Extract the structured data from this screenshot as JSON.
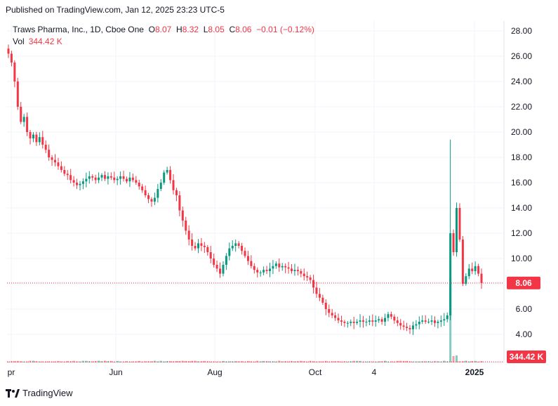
{
  "header": {
    "published": "Published on TradingView.com, Jan 12, 2025 23:23 UTC-5"
  },
  "legend": {
    "title": "Traws Pharma, Inc., 1D, Cboe One",
    "o_label": "O",
    "o": "8.07",
    "h_label": "H",
    "h": "8.32",
    "l_label": "L",
    "l": "8.05",
    "c_label": "C",
    "c": "8.06",
    "change": "−0.01 (−0.12%)"
  },
  "volume": {
    "label": "Vol",
    "value": "344.42 K"
  },
  "footer": {
    "brand": "TradingView"
  },
  "colors": {
    "up": "#089981",
    "down": "#f23645",
    "grid": "#f0f3fa",
    "text": "#131722"
  },
  "chart_data": {
    "type": "candlestick",
    "title": "Traws Pharma, Inc., 1D, Cboe One",
    "ylim": [
      3.0,
      29.0
    ],
    "y_ticks": [
      "4.00",
      "6.00",
      "8.00",
      "10.00",
      "12.00",
      "14.00",
      "16.00",
      "18.00",
      "20.00",
      "22.00",
      "24.00",
      "26.00",
      "28.00"
    ],
    "x_ticks": [
      "pr",
      "Jun",
      "Aug",
      "Oct",
      "4",
      "2025"
    ],
    "last_price_label": "8.06",
    "last_volume_label": "344.42 K",
    "last_price": 8.06,
    "close_path": [
      [
        0,
        26.2
      ],
      [
        1,
        25.5
      ],
      [
        2,
        24.0
      ],
      [
        3,
        22.0
      ],
      [
        4,
        20.8
      ],
      [
        5,
        21.2
      ],
      [
        6,
        20.0
      ],
      [
        7,
        19.5
      ],
      [
        8,
        19.8
      ],
      [
        9,
        19.2
      ],
      [
        10,
        19.6
      ],
      [
        11,
        19.0
      ],
      [
        12,
        18.6
      ],
      [
        13,
        18.0
      ],
      [
        14,
        17.8
      ],
      [
        15,
        17.6
      ],
      [
        16,
        17.3
      ],
      [
        17,
        17.0
      ],
      [
        18,
        16.7
      ],
      [
        19,
        16.6
      ],
      [
        20,
        16.2
      ],
      [
        21,
        16.0
      ],
      [
        22,
        15.8
      ],
      [
        23,
        15.9
      ],
      [
        24,
        16.1
      ],
      [
        25,
        16.3
      ],
      [
        26,
        16.5
      ],
      [
        27,
        16.4
      ],
      [
        28,
        16.2
      ],
      [
        29,
        16.4
      ],
      [
        30,
        16.6
      ],
      [
        31,
        16.3
      ],
      [
        32,
        16.5
      ],
      [
        33,
        16.4
      ],
      [
        34,
        16.2
      ],
      [
        35,
        16.3
      ],
      [
        36,
        16.5
      ],
      [
        37,
        16.3
      ],
      [
        38,
        16.1
      ],
      [
        39,
        16.4
      ],
      [
        40,
        16.2
      ],
      [
        41,
        16.0
      ],
      [
        42,
        15.7
      ],
      [
        43,
        15.4
      ],
      [
        44,
        15.0
      ],
      [
        45,
        14.7
      ],
      [
        46,
        14.5
      ],
      [
        47,
        14.8
      ],
      [
        48,
        15.5
      ],
      [
        49,
        16.0
      ],
      [
        50,
        16.8
      ],
      [
        51,
        17.0
      ],
      [
        52,
        16.2
      ],
      [
        53,
        15.4
      ],
      [
        54,
        15.0
      ],
      [
        55,
        13.8
      ],
      [
        56,
        13.0
      ],
      [
        57,
        12.2
      ],
      [
        58,
        11.5
      ],
      [
        59,
        11.0
      ],
      [
        60,
        10.8
      ],
      [
        61,
        11.2
      ],
      [
        62,
        11.0
      ],
      [
        63,
        10.9
      ],
      [
        64,
        10.5
      ],
      [
        65,
        10.0
      ],
      [
        66,
        9.5
      ],
      [
        67,
        9.2
      ],
      [
        68,
        8.8
      ],
      [
        69,
        9.5
      ],
      [
        70,
        10.2
      ],
      [
        71,
        10.8
      ],
      [
        72,
        11.0
      ],
      [
        73,
        11.2
      ],
      [
        74,
        11.0
      ],
      [
        75,
        10.6
      ],
      [
        76,
        10.2
      ],
      [
        77,
        9.8
      ],
      [
        78,
        9.4
      ],
      [
        79,
        9.1
      ],
      [
        80,
        8.9
      ],
      [
        81,
        8.9
      ],
      [
        82,
        9.1
      ],
      [
        83,
        9.0
      ],
      [
        84,
        9.2
      ],
      [
        85,
        9.4
      ],
      [
        86,
        9.6
      ],
      [
        87,
        9.3
      ],
      [
        88,
        9.4
      ],
      [
        89,
        9.3
      ],
      [
        90,
        9.2
      ],
      [
        91,
        9.0
      ],
      [
        92,
        9.1
      ],
      [
        93,
        9.0
      ],
      [
        94,
        8.8
      ],
      [
        95,
        8.6
      ],
      [
        96,
        8.5
      ],
      [
        97,
        8.3
      ],
      [
        98,
        7.7
      ],
      [
        99,
        7.2
      ],
      [
        100,
        6.9
      ],
      [
        101,
        6.5
      ],
      [
        102,
        6.0
      ],
      [
        103,
        5.7
      ],
      [
        104,
        5.5
      ],
      [
        105,
        5.3
      ],
      [
        106,
        5.1
      ],
      [
        107,
        5.0
      ],
      [
        108,
        4.9
      ],
      [
        109,
        4.9
      ],
      [
        110,
        5.0
      ],
      [
        111,
        4.9
      ],
      [
        112,
        5.0
      ],
      [
        113,
        5.1
      ],
      [
        114,
        5.0
      ],
      [
        115,
        5.0
      ],
      [
        116,
        5.1
      ],
      [
        117,
        5.0
      ],
      [
        118,
        5.1
      ],
      [
        119,
        5.2
      ],
      [
        120,
        5.0
      ],
      [
        121,
        5.3
      ],
      [
        122,
        5.6
      ],
      [
        123,
        5.4
      ],
      [
        124,
        5.1
      ],
      [
        125,
        4.9
      ],
      [
        126,
        4.7
      ],
      [
        127,
        4.6
      ],
      [
        128,
        4.5
      ],
      [
        129,
        4.4
      ],
      [
        130,
        4.7
      ],
      [
        131,
        4.8
      ],
      [
        132,
        5.0
      ],
      [
        133,
        5.1
      ],
      [
        134,
        5.0
      ],
      [
        135,
        5.0
      ],
      [
        136,
        5.1
      ],
      [
        137,
        4.9
      ],
      [
        138,
        5.0
      ],
      [
        139,
        5.1
      ],
      [
        140,
        5.2
      ],
      [
        141,
        5.5
      ],
      [
        142,
        12.0
      ],
      [
        143,
        10.5
      ],
      [
        144,
        14.0
      ],
      [
        145,
        11.5
      ],
      [
        146,
        8.0
      ],
      [
        147,
        8.6
      ],
      [
        148,
        9.2
      ],
      [
        149,
        9.0
      ],
      [
        150,
        9.4
      ],
      [
        151,
        8.8
      ],
      [
        152,
        8.06
      ]
    ],
    "spike_wick_high": 19.4
  }
}
